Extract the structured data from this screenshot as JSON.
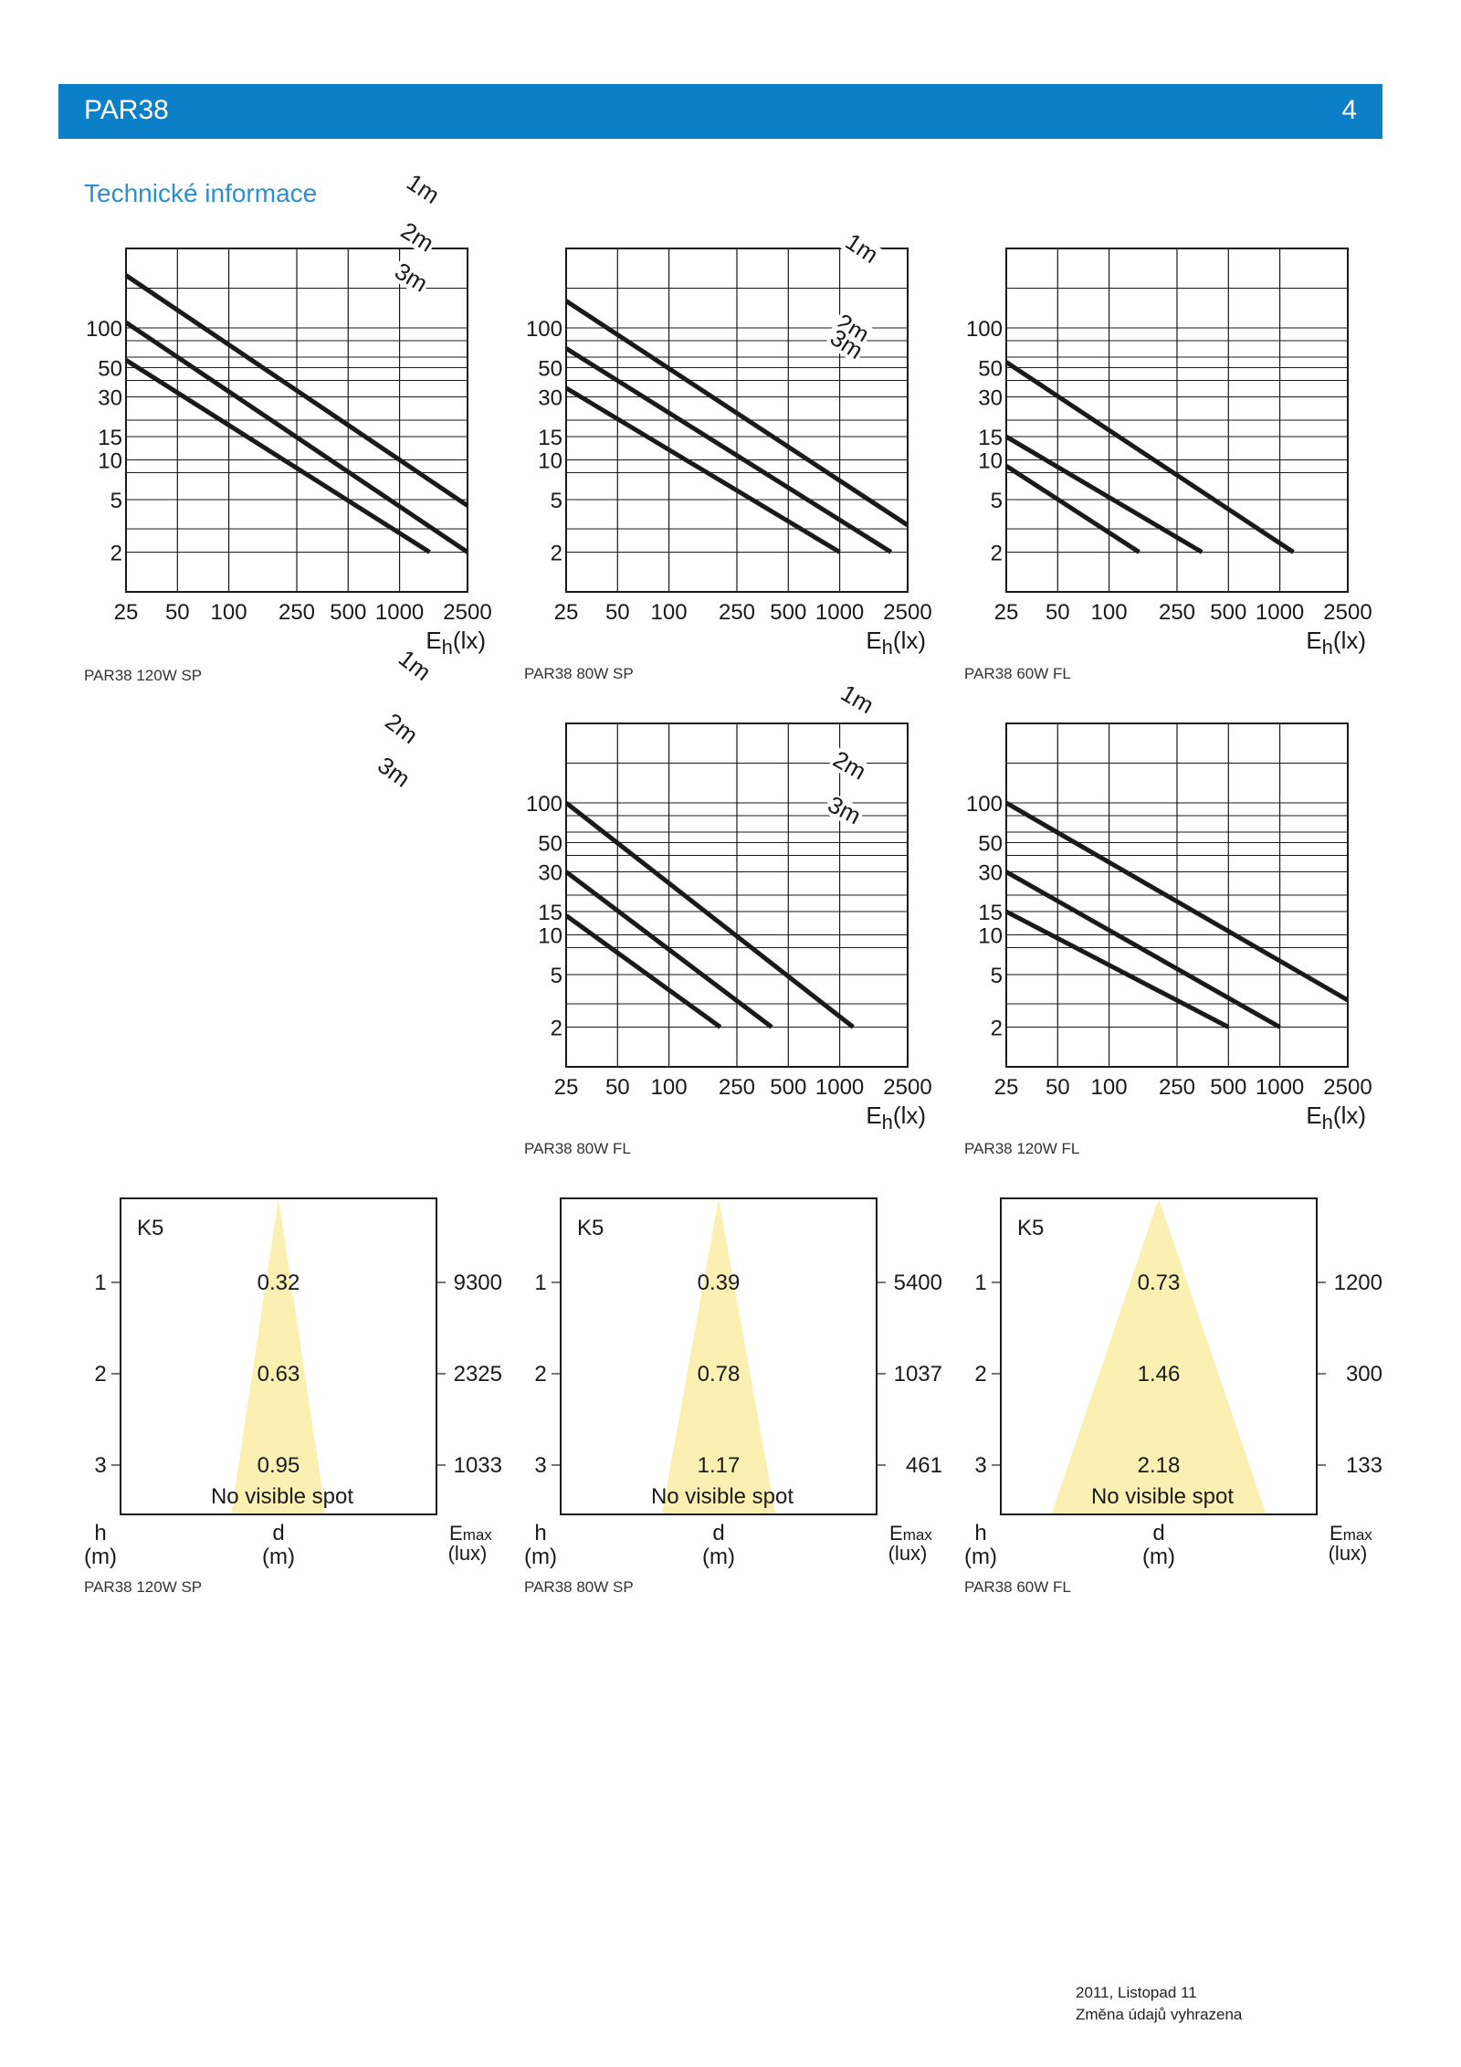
{
  "header": {
    "title": "PAR38",
    "page_number": "4"
  },
  "section_title": "Technické informace",
  "colors": {
    "header": "#0b7fc7",
    "section_title": "#2b8fd1",
    "beam": "#fcefb2",
    "line": "#1a1a1a"
  },
  "chart_data": [
    {
      "type": "line",
      "title": "",
      "caption": "PAR38 120W SP",
      "xlabel_base": "E",
      "xlabel_sub": "h",
      "xlabel_unit": "(lx)",
      "x_scale": "log",
      "x_ticks": [
        "25",
        "50",
        "100",
        "250",
        "500",
        "1000",
        "2500"
      ],
      "y_ticks": [
        "100",
        "50",
        "30",
        "15",
        "10",
        "5",
        "2"
      ],
      "series": [
        {
          "name": "1m",
          "points": [
            [
              25,
              250
            ],
            [
              2500,
              4.5
            ]
          ]
        },
        {
          "name": "2m",
          "points": [
            [
              25,
              110
            ],
            [
              2500,
              2
            ]
          ]
        },
        {
          "name": "3m",
          "points": [
            [
              25,
              57
            ],
            [
              1500,
              2
            ]
          ]
        }
      ],
      "label_pos": {
        "1m": 2.4,
        "2m": 2.1,
        "3m": 1.75
      }
    },
    {
      "type": "line",
      "title": "",
      "caption": "PAR38 80W SP",
      "xlabel_base": "E",
      "xlabel_sub": "h",
      "xlabel_unit": "(lx)",
      "x_scale": "log",
      "x_ticks": [
        "25",
        "50",
        "100",
        "250",
        "500",
        "1000",
        "2500"
      ],
      "y_ticks": [
        "100",
        "50",
        "30",
        "15",
        "10",
        "5",
        "2"
      ],
      "series": [
        {
          "name": "1m",
          "points": [
            [
              25,
              160
            ],
            [
              2500,
              3.2
            ]
          ]
        },
        {
          "name": "2m",
          "points": [
            [
              25,
              70
            ],
            [
              2000,
              2
            ]
          ]
        },
        {
          "name": "3m",
          "points": [
            [
              25,
              35
            ],
            [
              1000,
              2
            ]
          ]
        }
      ],
      "label_pos": {
        "1m": 2.75,
        "2m": 2.55,
        "3m": 2.35
      }
    },
    {
      "type": "line",
      "title": "",
      "caption": "PAR38 60W FL",
      "xlabel_base": "E",
      "xlabel_sub": "h",
      "xlabel_unit": "(lx)",
      "x_scale": "log",
      "x_ticks": [
        "25",
        "50",
        "100",
        "250",
        "500",
        "1000",
        "2500"
      ],
      "y_ticks": [
        "100",
        "50",
        "30",
        "15",
        "10",
        "5",
        "2"
      ],
      "series": [
        {
          "name": "1m",
          "points": [
            [
              25,
              55
            ],
            [
              1200,
              2
            ]
          ]
        },
        {
          "name": "2m",
          "points": [
            [
              25,
              15
            ],
            [
              350,
              2
            ]
          ]
        },
        {
          "name": "3m",
          "points": [
            [
              25,
              9
            ],
            [
              150,
              2
            ]
          ]
        }
      ],
      "label_pos": {
        "1m": 2.7,
        "2m": 2.4,
        "3m": 2.2
      }
    },
    {
      "type": "line",
      "title": "",
      "caption": "PAR38 80W FL",
      "xlabel_base": "E",
      "xlabel_sub": "h",
      "xlabel_unit": "(lx)",
      "x_scale": "log",
      "x_ticks": [
        "25",
        "50",
        "100",
        "250",
        "500",
        "1000",
        "2500"
      ],
      "y_ticks": [
        "100",
        "50",
        "30",
        "15",
        "10",
        "5",
        "2"
      ],
      "series": [
        {
          "name": "1m",
          "points": [
            [
              25,
              100
            ],
            [
              1200,
              2
            ]
          ]
        },
        {
          "name": "2m",
          "points": [
            [
              25,
              30
            ],
            [
              400,
              2
            ]
          ]
        },
        {
          "name": "3m",
          "points": [
            [
              25,
              14
            ],
            [
              200,
              2
            ]
          ]
        }
      ],
      "label_pos": {
        "1m": 2.45,
        "2m": 2.05,
        "3m": 1.85
      }
    },
    {
      "type": "line",
      "title": "",
      "caption": "PAR38 120W FL",
      "xlabel_base": "E",
      "xlabel_sub": "h",
      "xlabel_unit": "(lx)",
      "x_scale": "log",
      "x_ticks": [
        "25",
        "50",
        "100",
        "250",
        "500",
        "1000",
        "2500"
      ],
      "y_ticks": [
        "100",
        "50",
        "30",
        "15",
        "10",
        "5",
        "2"
      ],
      "series": [
        {
          "name": "1m",
          "points": [
            [
              25,
              100
            ],
            [
              2500,
              3.2
            ]
          ]
        },
        {
          "name": "2m",
          "points": [
            [
              25,
              30
            ],
            [
              1000,
              2
            ]
          ]
        },
        {
          "name": "3m",
          "points": [
            [
              25,
              15
            ],
            [
              500,
              2
            ]
          ]
        }
      ],
      "label_pos": {
        "1m": 2.55,
        "2m": 2.3,
        "3m": 2.15
      }
    }
  ],
  "cone_diagrams": [
    {
      "caption": "PAR38 120W SP",
      "label": "K5",
      "spread": 0.15,
      "h_values": [
        "1",
        "2",
        "3"
      ],
      "d_values": [
        "0.32",
        "0.63",
        "0.95"
      ],
      "emax_values": [
        "9300",
        "2325",
        "1033"
      ],
      "note": "No visible spot",
      "h_label": "h",
      "h_unit": "(m)",
      "d_label": "d",
      "d_unit": "(m)",
      "emax_label": "E",
      "emax_sub": "max",
      "emax_unit": "(lux)"
    },
    {
      "caption": "PAR38 80W SP",
      "label": "K5",
      "spread": 0.18,
      "h_values": [
        "1",
        "2",
        "3"
      ],
      "d_values": [
        "0.39",
        "0.78",
        "1.17"
      ],
      "emax_values": [
        "5400",
        "1037",
        "461"
      ],
      "note": "No visible spot",
      "h_label": "h",
      "h_unit": "(m)",
      "d_label": "d",
      "d_unit": "(m)",
      "emax_label": "E",
      "emax_sub": "max",
      "emax_unit": "(lux)"
    },
    {
      "caption": "PAR38 60W FL",
      "label": "K5",
      "spread": 0.34,
      "h_values": [
        "1",
        "2",
        "3"
      ],
      "d_values": [
        "0.73",
        "1.46",
        "2.18"
      ],
      "emax_values": [
        "1200",
        "300",
        "133"
      ],
      "note": "No visible spot",
      "h_label": "h",
      "h_unit": "(m)",
      "d_label": "d",
      "d_unit": "(m)",
      "emax_label": "E",
      "emax_sub": "max",
      "emax_unit": "(lux)"
    }
  ],
  "footer": {
    "date": "2011, Listopad 11",
    "note": "Změna údajů vyhrazena"
  }
}
